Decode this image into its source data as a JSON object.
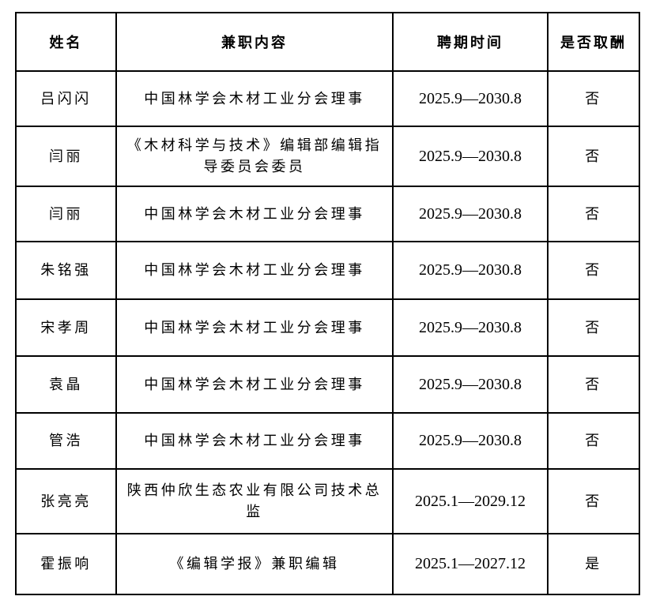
{
  "table": {
    "headers": [
      "姓名",
      "兼职内容",
      "聘期时间",
      "是否取酬"
    ],
    "rows": [
      {
        "name": "吕闪闪",
        "content": "中国林学会木材工业分会理事",
        "period": "2025.9—2030.8",
        "paid": "否"
      },
      {
        "name": "闫丽",
        "content": "《木材科学与技术》编辑部编辑指导委员会委员",
        "period": "2025.9—2030.8",
        "paid": "否"
      },
      {
        "name": "闫丽",
        "content": "中国林学会木材工业分会理事",
        "period": "2025.9—2030.8",
        "paid": "否"
      },
      {
        "name": "朱铭强",
        "content": "中国林学会木材工业分会理事",
        "period": "2025.9—2030.8",
        "paid": "否"
      },
      {
        "name": "宋孝周",
        "content": "中国林学会木材工业分会理事",
        "period": "2025.9—2030.8",
        "paid": "否"
      },
      {
        "name": "袁晶",
        "content": "中国林学会木材工业分会理事",
        "period": "2025.9—2030.8",
        "paid": "否"
      },
      {
        "name": "管浩",
        "content": "中国林学会木材工业分会理事",
        "period": "2025.9—2030.8",
        "paid": "否"
      },
      {
        "name": "张亮亮",
        "content": "陕西仲欣生态农业有限公司技术总监",
        "period": "2025.1—2029.12",
        "paid": "否"
      },
      {
        "name": "霍振响",
        "content": "《编辑学报》兼职编辑",
        "period": "2025.1—2027.12",
        "paid": "是"
      }
    ]
  },
  "colors": {
    "border": "#000000",
    "text": "#000000",
    "background": "#ffffff"
  }
}
